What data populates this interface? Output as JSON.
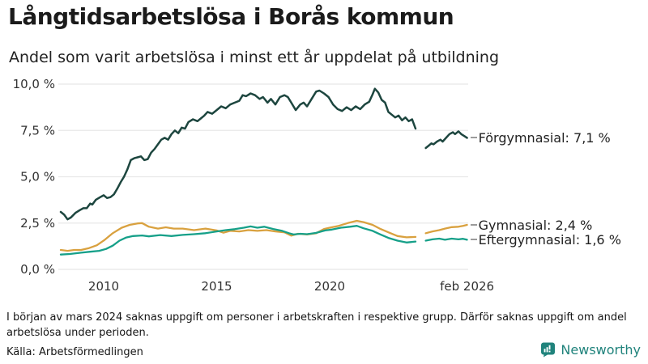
{
  "header": {
    "title": "Långtidsarbetslösa i Borås kommun",
    "subtitle": "Andel som varit arbetslösa i minst ett år uppdelat på utbildning"
  },
  "footer": {
    "note": "I början av mars 2024 saknas uppgift om personer i arbetskraften i respektive grupp. Därför saknas uppgift om andel arbetslösa under perioden.",
    "source": "Källa: Arbetsförmedlingen",
    "brand": "Newsworthy",
    "brand_color": "#20837c"
  },
  "chart_data": {
    "type": "line",
    "title": "Långtidsarbetslösa i Borås kommun",
    "subtitle": "Andel som varit arbetslösa i minst ett år uppdelat på utbildning",
    "unit": "%",
    "ylim": [
      0,
      10
    ],
    "xlim": [
      2008.1,
      2026.3
    ],
    "grid": "horizontal",
    "legend_position": "right-of-line-ends",
    "gap_missing_data": {
      "from": 2023.8,
      "to": 2024.25,
      "reason": "saknas uppgift fr.o.m. början av mars 2024"
    },
    "y_ticks": [
      {
        "value": 0,
        "label": "0,0 %"
      },
      {
        "value": 2.5,
        "label": "2,5 %"
      },
      {
        "value": 5,
        "label": "5,0 %"
      },
      {
        "value": 7.5,
        "label": "7,5 %"
      },
      {
        "value": 10,
        "label": "10,0 %"
      }
    ],
    "x_ticks": [
      {
        "year": 2010,
        "label": "2010"
      },
      {
        "year": 2015,
        "label": "2015"
      },
      {
        "year": 2020,
        "label": "2020"
      },
      {
        "year": 2026.08,
        "label": "feb 2026"
      }
    ],
    "series": [
      {
        "name": "Förgymnasial",
        "label": "Förgymnasial: 7,1 %",
        "latest_value": 7.1,
        "color": "#1d463f",
        "segments": [
          [
            [
              2008.1,
              3.1
            ],
            [
              2008.25,
              2.95
            ],
            [
              2008.4,
              2.7
            ],
            [
              2008.55,
              2.8
            ],
            [
              2008.75,
              3.05
            ],
            [
              2008.95,
              3.2
            ],
            [
              2009.1,
              3.3
            ],
            [
              2009.25,
              3.3
            ],
            [
              2009.4,
              3.55
            ],
            [
              2009.5,
              3.5
            ],
            [
              2009.65,
              3.75
            ],
            [
              2009.85,
              3.9
            ],
            [
              2010.0,
              4.0
            ],
            [
              2010.15,
              3.85
            ],
            [
              2010.3,
              3.9
            ],
            [
              2010.45,
              4.05
            ],
            [
              2010.6,
              4.35
            ],
            [
              2010.75,
              4.7
            ],
            [
              2010.9,
              5.0
            ],
            [
              2011.05,
              5.4
            ],
            [
              2011.2,
              5.9
            ],
            [
              2011.35,
              6.0
            ],
            [
              2011.5,
              6.05
            ],
            [
              2011.65,
              6.1
            ],
            [
              2011.8,
              5.9
            ],
            [
              2011.95,
              5.95
            ],
            [
              2012.1,
              6.3
            ],
            [
              2012.25,
              6.5
            ],
            [
              2012.4,
              6.75
            ],
            [
              2012.55,
              7.0
            ],
            [
              2012.7,
              7.1
            ],
            [
              2012.85,
              7.0
            ],
            [
              2013.0,
              7.3
            ],
            [
              2013.15,
              7.5
            ],
            [
              2013.3,
              7.35
            ],
            [
              2013.45,
              7.65
            ],
            [
              2013.6,
              7.6
            ],
            [
              2013.75,
              7.95
            ],
            [
              2013.95,
              8.1
            ],
            [
              2014.15,
              8.0
            ],
            [
              2014.3,
              8.15
            ],
            [
              2014.45,
              8.3
            ],
            [
              2014.6,
              8.5
            ],
            [
              2014.8,
              8.4
            ],
            [
              2015.0,
              8.6
            ],
            [
              2015.2,
              8.8
            ],
            [
              2015.4,
              8.7
            ],
            [
              2015.6,
              8.9
            ],
            [
              2015.8,
              9.0
            ],
            [
              2016.0,
              9.1
            ],
            [
              2016.15,
              9.4
            ],
            [
              2016.3,
              9.35
            ],
            [
              2016.5,
              9.5
            ],
            [
              2016.7,
              9.4
            ],
            [
              2016.9,
              9.2
            ],
            [
              2017.05,
              9.3
            ],
            [
              2017.25,
              9.0
            ],
            [
              2017.4,
              9.2
            ],
            [
              2017.6,
              8.9
            ],
            [
              2017.8,
              9.3
            ],
            [
              2018.0,
              9.4
            ],
            [
              2018.15,
              9.3
            ],
            [
              2018.3,
              9.0
            ],
            [
              2018.5,
              8.6
            ],
            [
              2018.7,
              8.9
            ],
            [
              2018.85,
              9.0
            ],
            [
              2019.0,
              8.8
            ],
            [
              2019.2,
              9.2
            ],
            [
              2019.4,
              9.6
            ],
            [
              2019.55,
              9.65
            ],
            [
              2019.75,
              9.5
            ],
            [
              2019.95,
              9.3
            ],
            [
              2020.15,
              8.9
            ],
            [
              2020.35,
              8.65
            ],
            [
              2020.55,
              8.55
            ],
            [
              2020.75,
              8.75
            ],
            [
              2020.95,
              8.6
            ],
            [
              2021.15,
              8.8
            ],
            [
              2021.35,
              8.65
            ],
            [
              2021.55,
              8.9
            ],
            [
              2021.75,
              9.05
            ],
            [
              2021.9,
              9.45
            ],
            [
              2022.0,
              9.75
            ],
            [
              2022.15,
              9.55
            ],
            [
              2022.3,
              9.15
            ],
            [
              2022.45,
              9.0
            ],
            [
              2022.6,
              8.5
            ],
            [
              2022.75,
              8.35
            ],
            [
              2022.9,
              8.2
            ],
            [
              2023.05,
              8.3
            ],
            [
              2023.2,
              8.05
            ],
            [
              2023.35,
              8.2
            ],
            [
              2023.5,
              8.0
            ],
            [
              2023.65,
              8.1
            ],
            [
              2023.8,
              7.6
            ]
          ],
          [
            [
              2024.25,
              6.55
            ],
            [
              2024.4,
              6.7
            ],
            [
              2024.5,
              6.8
            ],
            [
              2024.6,
              6.75
            ],
            [
              2024.75,
              6.9
            ],
            [
              2024.9,
              7.0
            ],
            [
              2025.0,
              6.9
            ],
            [
              2025.15,
              7.1
            ],
            [
              2025.3,
              7.3
            ],
            [
              2025.45,
              7.4
            ],
            [
              2025.55,
              7.3
            ],
            [
              2025.7,
              7.45
            ],
            [
              2025.82,
              7.3
            ],
            [
              2025.95,
              7.2
            ],
            [
              2026.08,
              7.1
            ]
          ]
        ]
      },
      {
        "name": "Gymnasial",
        "label": "Gymnasial: 2,4 %",
        "latest_value": 2.4,
        "color": "#d9a13f",
        "segments": [
          [
            [
              2008.1,
              1.05
            ],
            [
              2008.4,
              1.0
            ],
            [
              2008.7,
              1.05
            ],
            [
              2009.0,
              1.05
            ],
            [
              2009.35,
              1.15
            ],
            [
              2009.7,
              1.3
            ],
            [
              2010.05,
              1.6
            ],
            [
              2010.4,
              1.95
            ],
            [
              2010.8,
              2.25
            ],
            [
              2011.15,
              2.4
            ],
            [
              2011.5,
              2.48
            ],
            [
              2011.7,
              2.5
            ],
            [
              2012.0,
              2.3
            ],
            [
              2012.4,
              2.2
            ],
            [
              2012.75,
              2.27
            ],
            [
              2013.1,
              2.2
            ],
            [
              2013.5,
              2.2
            ],
            [
              2014.0,
              2.12
            ],
            [
              2014.5,
              2.2
            ],
            [
              2015.0,
              2.1
            ],
            [
              2015.3,
              1.98
            ],
            [
              2015.6,
              2.08
            ],
            [
              2016.0,
              2.05
            ],
            [
              2016.4,
              2.12
            ],
            [
              2016.8,
              2.08
            ],
            [
              2017.2,
              2.12
            ],
            [
              2017.6,
              2.05
            ],
            [
              2018.0,
              2.0
            ],
            [
              2018.3,
              1.82
            ],
            [
              2018.6,
              1.92
            ],
            [
              2019.0,
              1.88
            ],
            [
              2019.4,
              1.95
            ],
            [
              2019.75,
              2.18
            ],
            [
              2020.0,
              2.25
            ],
            [
              2020.4,
              2.35
            ],
            [
              2020.8,
              2.5
            ],
            [
              2021.2,
              2.62
            ],
            [
              2021.5,
              2.55
            ],
            [
              2021.9,
              2.4
            ],
            [
              2022.25,
              2.18
            ],
            [
              2022.6,
              2.0
            ],
            [
              2023.0,
              1.8
            ],
            [
              2023.4,
              1.73
            ],
            [
              2023.8,
              1.75
            ]
          ],
          [
            [
              2024.25,
              1.95
            ],
            [
              2024.55,
              2.05
            ],
            [
              2024.85,
              2.12
            ],
            [
              2025.1,
              2.2
            ],
            [
              2025.4,
              2.28
            ],
            [
              2025.7,
              2.3
            ],
            [
              2025.9,
              2.35
            ],
            [
              2026.08,
              2.4
            ]
          ]
        ]
      },
      {
        "name": "Eftergymnasial",
        "label": "Eftergymnasial: 1,6 %",
        "latest_value": 1.6,
        "color": "#16a089",
        "segments": [
          [
            [
              2008.1,
              0.8
            ],
            [
              2008.5,
              0.83
            ],
            [
              2009.0,
              0.9
            ],
            [
              2009.4,
              0.95
            ],
            [
              2009.8,
              1.0
            ],
            [
              2010.1,
              1.1
            ],
            [
              2010.4,
              1.28
            ],
            [
              2010.7,
              1.55
            ],
            [
              2011.0,
              1.72
            ],
            [
              2011.3,
              1.8
            ],
            [
              2011.7,
              1.83
            ],
            [
              2012.0,
              1.78
            ],
            [
              2012.5,
              1.85
            ],
            [
              2013.0,
              1.8
            ],
            [
              2013.5,
              1.86
            ],
            [
              2014.0,
              1.9
            ],
            [
              2014.5,
              1.95
            ],
            [
              2015.0,
              2.05
            ],
            [
              2015.4,
              2.12
            ],
            [
              2015.8,
              2.17
            ],
            [
              2016.2,
              2.25
            ],
            [
              2016.5,
              2.32
            ],
            [
              2016.8,
              2.25
            ],
            [
              2017.1,
              2.3
            ],
            [
              2017.5,
              2.18
            ],
            [
              2017.9,
              2.08
            ],
            [
              2018.2,
              1.95
            ],
            [
              2018.4,
              1.88
            ],
            [
              2018.7,
              1.92
            ],
            [
              2019.0,
              1.9
            ],
            [
              2019.4,
              1.97
            ],
            [
              2019.8,
              2.1
            ],
            [
              2020.1,
              2.15
            ],
            [
              2020.5,
              2.25
            ],
            [
              2020.9,
              2.3
            ],
            [
              2021.2,
              2.35
            ],
            [
              2021.5,
              2.22
            ],
            [
              2021.9,
              2.08
            ],
            [
              2022.25,
              1.88
            ],
            [
              2022.6,
              1.7
            ],
            [
              2023.0,
              1.55
            ],
            [
              2023.4,
              1.45
            ],
            [
              2023.8,
              1.5
            ]
          ],
          [
            [
              2024.25,
              1.55
            ],
            [
              2024.55,
              1.62
            ],
            [
              2024.85,
              1.66
            ],
            [
              2025.1,
              1.6
            ],
            [
              2025.4,
              1.66
            ],
            [
              2025.7,
              1.62
            ],
            [
              2025.9,
              1.65
            ],
            [
              2026.08,
              1.6
            ]
          ]
        ]
      }
    ],
    "colors": {
      "grid": "#e8e8e8",
      "axis_text": "#333333",
      "leader_dash": "#9b9b9b"
    }
  }
}
